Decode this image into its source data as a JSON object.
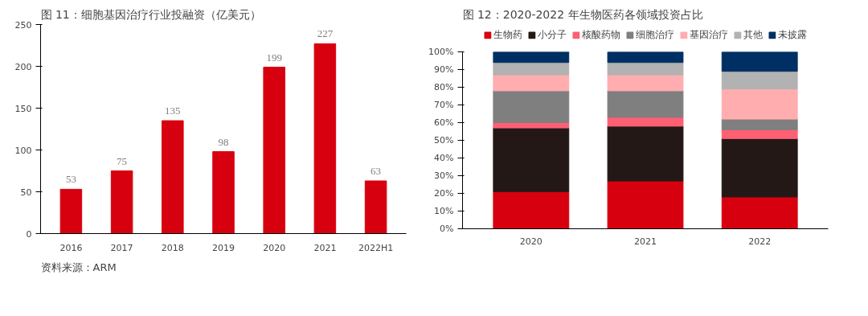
{
  "chart_data": [
    {
      "type": "bar",
      "title": "图 11：细胞基因治疗行业投融资（亿美元）",
      "categories": [
        "2016",
        "2017",
        "2018",
        "2019",
        "2020",
        "2021",
        "2022H1"
      ],
      "values": [
        53,
        75,
        135,
        98,
        199,
        227,
        63
      ],
      "color": "#d7000f",
      "ylim": [
        0,
        250
      ],
      "yticks": [
        0,
        50,
        100,
        150,
        200,
        250
      ],
      "data_labels": true,
      "grid": false,
      "annotations": [
        "资料来源：ARM"
      ]
    },
    {
      "type": "bar",
      "title": "图 12：2020-2022 年生物医药各领域投资占比",
      "categories": [
        "2020",
        "2021",
        "2022"
      ],
      "stacked": true,
      "legend": "top",
      "grid": false,
      "ylim": [
        0,
        100
      ],
      "yticks": [
        {
          "value": 0,
          "label": "0%"
        },
        {
          "value": 10,
          "label": "10%"
        },
        {
          "value": 20,
          "label": "20%"
        },
        {
          "value": 30,
          "label": "30%"
        },
        {
          "value": 40,
          "label": "40%"
        },
        {
          "value": 50,
          "label": "50%"
        },
        {
          "value": 60,
          "label": "60%"
        },
        {
          "value": 70,
          "label": "70%"
        },
        {
          "value": 80,
          "label": "80%"
        },
        {
          "value": 90,
          "label": "90%"
        },
        {
          "value": 100,
          "label": "100%"
        }
      ],
      "series": [
        {
          "name": "生物药",
          "color": "#d7000f",
          "values": [
            21,
            27,
            18
          ]
        },
        {
          "name": "小分子",
          "color": "#231815",
          "values": [
            36,
            31,
            33
          ]
        },
        {
          "name": "核酸药物",
          "color": "#ff5f73",
          "values": [
            3,
            5,
            5
          ]
        },
        {
          "name": "细胞治疗",
          "color": "#7f7f7f",
          "values": [
            18,
            15,
            6
          ]
        },
        {
          "name": "基因治疗",
          "color": "#ffadaf",
          "values": [
            9,
            9,
            17
          ]
        },
        {
          "name": "其他",
          "color": "#b2b2b2",
          "values": [
            7,
            7,
            10
          ]
        },
        {
          "name": "未披露",
          "color": "#003063",
          "values": [
            6,
            6,
            11
          ]
        }
      ]
    }
  ]
}
